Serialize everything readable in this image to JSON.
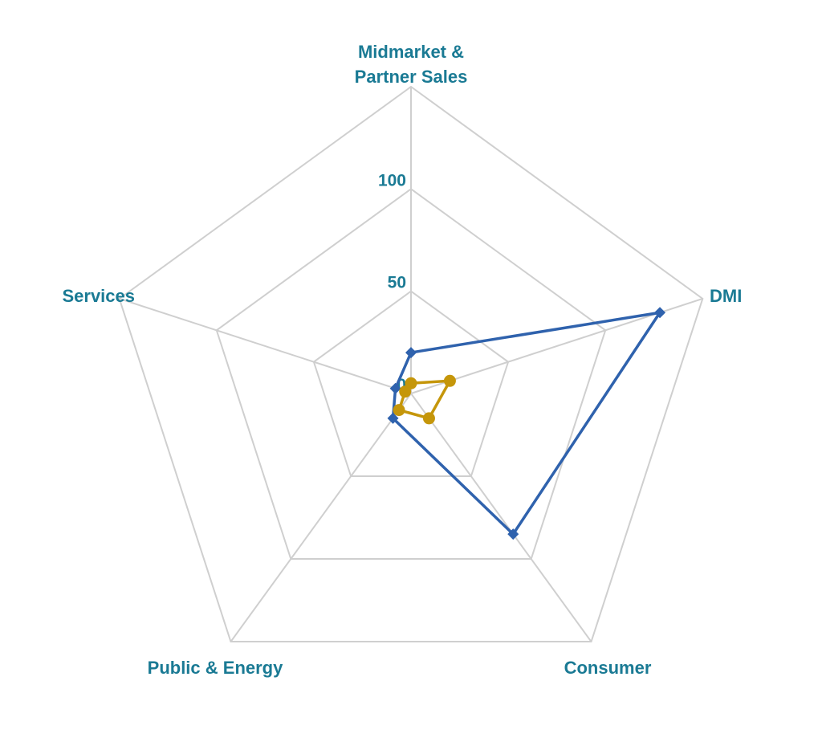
{
  "chart_data": {
    "type": "radar",
    "categories": [
      [
        "Midmarket &",
        "Partner Sales"
      ],
      [
        "DMI"
      ],
      [
        "Consumer"
      ],
      [
        "Public & Energy"
      ],
      [
        "Services"
      ]
    ],
    "ticks": [
      0,
      50,
      100
    ],
    "rmax": 150,
    "grid": true,
    "series": [
      {
        "color": "#2f62ad",
        "marker": "diamond",
        "values": [
          20,
          128,
          85,
          15,
          8
        ]
      },
      {
        "color": "#c5960a",
        "marker": "circle",
        "values": [
          5,
          20,
          15,
          10,
          3
        ]
      }
    ]
  },
  "colors": {
    "label": "#1a7a94",
    "grid": "#cfcfcf"
  }
}
